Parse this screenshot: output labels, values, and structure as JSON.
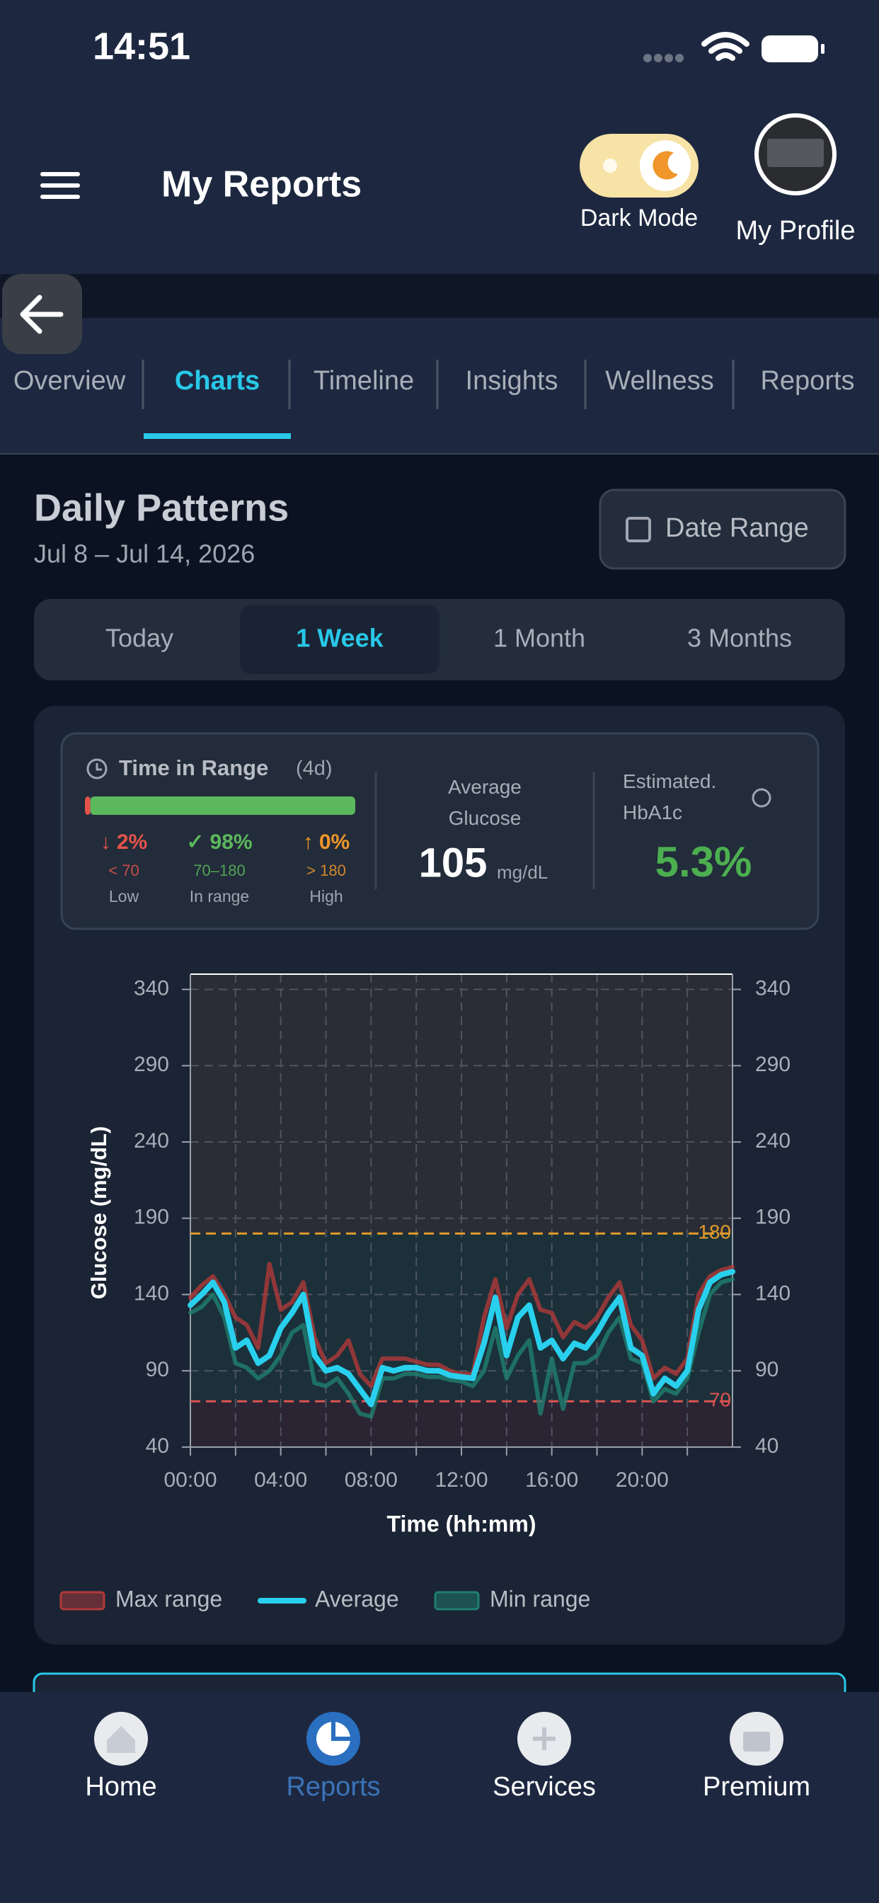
{
  "status_bar": {
    "time": "14:51"
  },
  "header": {
    "title": "My Reports",
    "dark_mode_label": "Dark Mode",
    "profile_label": "My Profile"
  },
  "tabs": {
    "items": [
      "Overview",
      "Charts",
      "Timeline",
      "Insights",
      "Wellness",
      "Reports"
    ],
    "active": 1
  },
  "section": {
    "title": "Daily Patterns",
    "date_range": "Jul 8 – Jul 14, 2026",
    "date_button": "Date Range"
  },
  "periods": {
    "items": [
      "Today",
      "1 Week",
      "1 Month",
      "3 Months"
    ],
    "active": 1
  },
  "summary": {
    "tir_title": "Time in Range",
    "tir_days": "(4d)",
    "tir": [
      {
        "icon": "↓",
        "value": 2,
        "label": "2%",
        "range": "< 70",
        "name": "Low",
        "color": "#e5534b"
      },
      {
        "icon": "✓",
        "value": 98,
        "label": "98%",
        "range": "70–180",
        "name": "In range",
        "color": "#5cb85c"
      },
      {
        "icon": "↑",
        "value": 0,
        "label": "0%",
        "range": "> 180",
        "name": "High",
        "color": "#f0962a"
      }
    ],
    "avg_title": "Average Glucose",
    "avg_value": "105",
    "avg_unit": "mg/dL",
    "hba1c_title": "Estimated. HbA1c",
    "hba1c_value": "5.3%"
  },
  "chart_data": {
    "type": "line",
    "x_label": "Time (hh:mm)",
    "y_label": "Glucose (mg/dL)",
    "x": [
      0,
      0.5,
      1,
      1.5,
      2,
      2.5,
      3,
      3.5,
      4,
      4.5,
      5,
      5.5,
      6,
      6.5,
      7,
      7.5,
      8,
      8.5,
      9,
      9.5,
      10,
      10.5,
      11,
      11.5,
      12,
      12.5,
      13,
      13.5,
      14,
      14.5,
      15,
      15.5,
      16,
      16.5,
      17,
      17.5,
      18,
      18.5,
      19,
      19.5,
      20,
      20.5,
      21,
      21.5,
      22,
      22.5,
      23,
      23.5,
      24
    ],
    "xlim": [
      0,
      24
    ],
    "xticks": [
      {
        "value": 0,
        "label": "00:00"
      },
      {
        "value": 4,
        "label": "04:00"
      },
      {
        "value": 8,
        "label": "08:00"
      },
      {
        "value": 12,
        "label": "12:00"
      },
      {
        "value": 16,
        "label": "16:00"
      },
      {
        "value": 20,
        "label": "20:00"
      }
    ],
    "xminorticks": [
      2,
      6,
      10,
      14,
      18,
      22
    ],
    "ylim": [
      40,
      350
    ],
    "yticks": [
      40,
      90,
      140,
      190,
      240,
      290,
      340
    ],
    "y2lim": [
      40,
      350
    ],
    "y2ticks": [
      40,
      90,
      140,
      190,
      240,
      290,
      340
    ],
    "grid": true,
    "thresholds": [
      {
        "value": 180,
        "color": "#e09a2a"
      },
      {
        "value": 70,
        "color": "#d9534f"
      }
    ],
    "series": [
      {
        "name": "Max range",
        "color": "#b03a3a",
        "style": "range",
        "values": [
          138,
          146,
          152,
          140,
          125,
          120,
          105,
          160,
          130,
          135,
          148,
          112,
          95,
          100,
          110,
          88,
          80,
          98,
          98,
          98,
          96,
          94,
          94,
          90,
          88,
          88,
          125,
          150,
          118,
          140,
          150,
          130,
          128,
          112,
          122,
          118,
          125,
          138,
          148,
          120,
          110,
          85,
          92,
          88,
          98,
          140,
          152,
          156,
          158
        ]
      },
      {
        "name": "Average",
        "color": "#29d0ee",
        "style": "line",
        "values": [
          133,
          140,
          148,
          135,
          105,
          110,
          95,
          100,
          118,
          128,
          140,
          100,
          90,
          92,
          88,
          78,
          68,
          92,
          90,
          92,
          92,
          90,
          90,
          87,
          86,
          85,
          108,
          138,
          100,
          125,
          133,
          105,
          110,
          98,
          108,
          105,
          115,
          128,
          138,
          105,
          100,
          75,
          85,
          80,
          90,
          130,
          148,
          153,
          155
        ]
      },
      {
        "name": "Min range",
        "color": "#1f7f70",
        "style": "range",
        "values": [
          128,
          132,
          140,
          125,
          95,
          92,
          85,
          90,
          100,
          115,
          120,
          82,
          80,
          85,
          75,
          62,
          60,
          85,
          85,
          88,
          88,
          86,
          86,
          84,
          83,
          80,
          90,
          118,
          85,
          100,
          110,
          62,
          98,
          65,
          95,
          95,
          100,
          115,
          125,
          98,
          95,
          70,
          78,
          75,
          85,
          115,
          140,
          148,
          150
        ]
      }
    ]
  },
  "bottom_nav": {
    "items": [
      "Home",
      "Reports",
      "Services",
      "Premium"
    ],
    "active": 1
  }
}
